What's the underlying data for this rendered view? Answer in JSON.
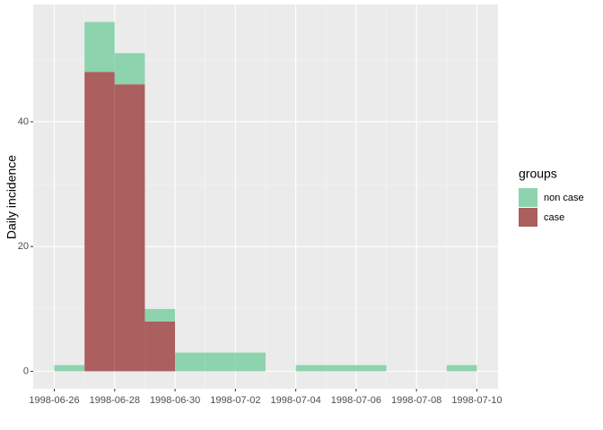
{
  "chart_data": {
    "type": "histogram",
    "y_label": "Daily incidence",
    "bins": [
      "1998-06-26",
      "1998-06-27",
      "1998-06-28",
      "1998-06-29",
      "1998-06-30",
      "1998-07-01",
      "1998-07-02",
      "1998-07-03",
      "1998-07-04",
      "1998-07-05",
      "1998-07-06",
      "1998-07-07",
      "1998-07-08",
      "1998-07-09",
      "1998-07-10"
    ],
    "series": [
      {
        "name": "case",
        "color": "#ab5f5f",
        "values": [
          0,
          48,
          46,
          8,
          0,
          0,
          0,
          0,
          0,
          0,
          0,
          0,
          0,
          0
        ]
      },
      {
        "name": "non case",
        "color": "#8dd3ae",
        "values": [
          1,
          8,
          5,
          2,
          3,
          3,
          3,
          0,
          1,
          1,
          1,
          0,
          0,
          1
        ]
      }
    ],
    "stacked": true,
    "legend_title": "groups",
    "xticks": [
      "1998-06-26",
      "1998-06-28",
      "1998-06-30",
      "1998-07-02",
      "1998-07-04",
      "1998-07-06",
      "1998-07-08",
      "1998-07-10"
    ],
    "ylim": [
      -2.8,
      58.8
    ],
    "yticks": [
      0,
      20,
      40
    ],
    "grid": true
  }
}
